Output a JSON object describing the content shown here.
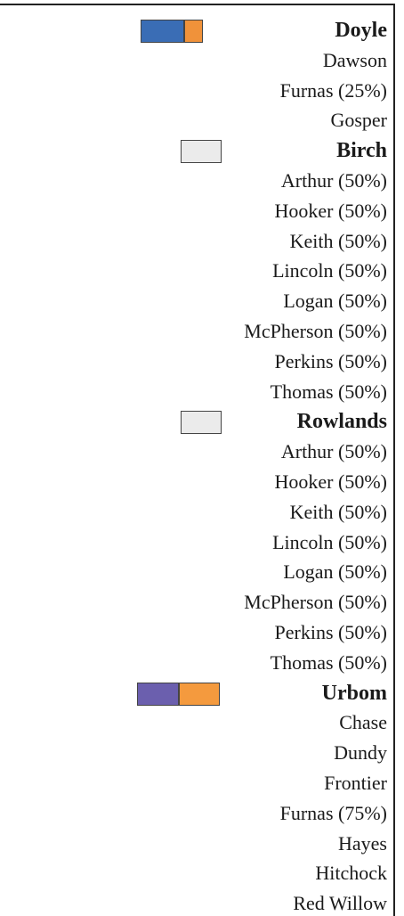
{
  "groups": [
    {
      "name": "Doyle",
      "swatch": [
        "#3a6db5",
        "#f0923a"
      ],
      "items": [
        "Dawson",
        "Furnas (25%)",
        "Gosper"
      ]
    },
    {
      "name": "Birch",
      "swatch": [
        "#ebebeb"
      ],
      "items": [
        "Arthur (50%)",
        "Hooker (50%)",
        "Keith (50%)",
        "Lincoln (50%)",
        "Logan (50%)",
        "McPherson (50%)",
        "Perkins (50%)",
        "Thomas (50%)"
      ]
    },
    {
      "name": "Rowlands",
      "swatch": [
        "#ebebeb"
      ],
      "items": [
        "Arthur (50%)",
        "Hooker (50%)",
        "Keith (50%)",
        "Lincoln (50%)",
        "Logan (50%)",
        "McPherson (50%)",
        "Perkins (50%)",
        "Thomas (50%)"
      ]
    },
    {
      "name": "Urbom",
      "swatch": [
        "#6b5fae",
        "#f49a3e"
      ],
      "items": [
        "Chase",
        "Dundy",
        "Frontier",
        "Furnas (75%)",
        "Hayes",
        "Hitchock",
        "Red Willow"
      ]
    }
  ]
}
